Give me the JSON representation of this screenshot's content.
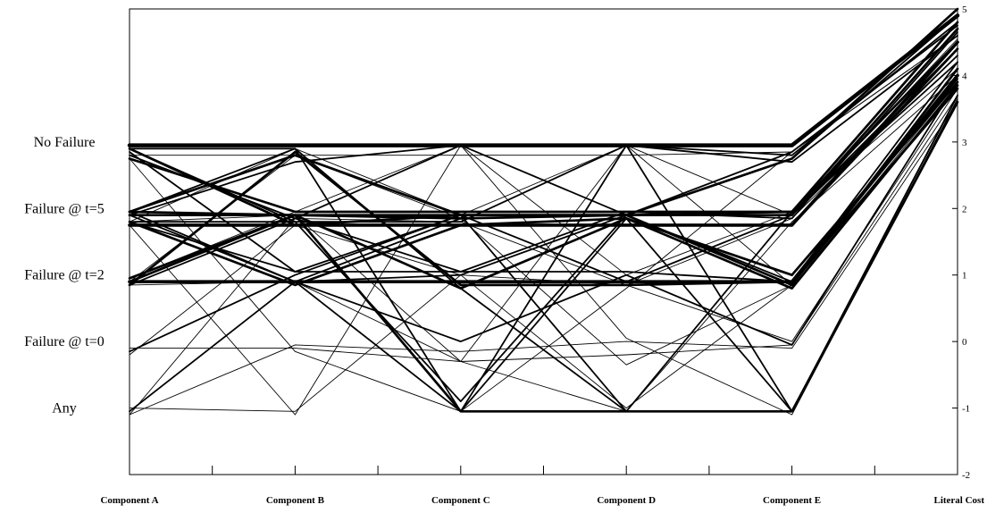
{
  "chart_data": {
    "type": "parallel-coordinates",
    "axes": [
      "Component A",
      "Component B",
      "Component C",
      "Component D",
      "Component E",
      "Literal Cost"
    ],
    "category_levels": [
      {
        "label": "No Failure",
        "value": 3
      },
      {
        "label": "Failure @ t=5",
        "value": 2
      },
      {
        "label": "Failure @ t=2",
        "value": 1
      },
      {
        "label": "Failure @ t=0",
        "value": 0
      },
      {
        "label": "Any",
        "value": -1
      }
    ],
    "right_axis_ticks": [
      "5",
      "4",
      "3",
      "2",
      "1",
      "0",
      "-1",
      "-2"
    ],
    "ylim": [
      -2,
      5
    ],
    "line_color": "#000000",
    "grid": false,
    "lines": [
      {
        "values": [
          2.95,
          2.95,
          2.95,
          2.95,
          2.95,
          4.9
        ],
        "weight": 5
      },
      {
        "values": [
          2.8,
          2.8,
          2.8,
          2.8,
          2.85,
          4.6
        ],
        "weight": 1
      },
      {
        "values": [
          2.75,
          1.95,
          1.95,
          1.95,
          1.95,
          4.5
        ],
        "weight": 3
      },
      {
        "values": [
          2.9,
          1.75,
          1.75,
          1.75,
          1.75,
          4.4
        ],
        "weight": 3
      },
      {
        "values": [
          1.75,
          1.75,
          1.75,
          1.75,
          1.75,
          4.5
        ],
        "weight": 4
      },
      {
        "values": [
          1.75,
          1.75,
          1.9,
          1.9,
          1.9,
          4.7
        ],
        "weight": 3
      },
      {
        "values": [
          1.95,
          2.8,
          1.9,
          1.9,
          1.95,
          4.8
        ],
        "weight": 3
      },
      {
        "values": [
          1.95,
          0.9,
          1.0,
          1.9,
          0.9,
          4.2
        ],
        "weight": 2
      },
      {
        "values": [
          0.9,
          0.9,
          0.9,
          0.9,
          0.9,
          4.0
        ],
        "weight": 4
      },
      {
        "values": [
          0.85,
          2.85,
          0.85,
          0.85,
          0.9,
          3.8
        ],
        "weight": 3
      },
      {
        "values": [
          0.95,
          1.9,
          1.85,
          1.9,
          0.85,
          4.1
        ],
        "weight": 3
      },
      {
        "values": [
          2.85,
          1.05,
          1.9,
          0.9,
          1.9,
          4.3
        ],
        "weight": 2
      },
      {
        "values": [
          1.8,
          0.85,
          1.75,
          1.85,
          1.0,
          3.9
        ],
        "weight": 3
      },
      {
        "values": [
          1.9,
          2.7,
          2.95,
          2.95,
          2.8,
          4.8
        ],
        "weight": 2
      },
      {
        "values": [
          0.85,
          1.85,
          2.95,
          1.9,
          2.75,
          4.9
        ],
        "weight": 2
      },
      {
        "values": [
          2.9,
          1.8,
          1.8,
          2.95,
          2.7,
          4.6
        ],
        "weight": 2
      },
      {
        "values": [
          1.9,
          1.9,
          1.9,
          1.9,
          2.75,
          5.0
        ],
        "weight": 3
      },
      {
        "values": [
          0.9,
          0.9,
          1.85,
          1.9,
          2.85,
          4.75
        ],
        "weight": 2
      },
      {
        "values": [
          1.8,
          1.8,
          -0.9,
          1.9,
          1.9,
          4.4
        ],
        "weight": 2
      },
      {
        "values": [
          0.9,
          1.9,
          -1.05,
          -1.05,
          -1.05,
          3.6
        ],
        "weight": 3
      },
      {
        "values": [
          -1.05,
          0.9,
          -1.05,
          1.85,
          -1.05,
          3.7
        ],
        "weight": 2
      },
      {
        "values": [
          -0.15,
          1.0,
          1.9,
          -1.05,
          -1.05,
          3.6
        ],
        "weight": 2
      },
      {
        "values": [
          -1.0,
          -1.05,
          1.0,
          -1.0,
          0.85,
          3.8
        ],
        "weight": 1
      },
      {
        "values": [
          -0.1,
          -0.1,
          -0.3,
          -0.2,
          -0.05,
          3.7
        ],
        "weight": 1
      },
      {
        "values": [
          -1.1,
          -0.05,
          -0.15,
          0.0,
          -0.1,
          3.6
        ],
        "weight": 1
      },
      {
        "values": [
          1.9,
          0.9,
          0.0,
          1.0,
          -0.05,
          3.9
        ],
        "weight": 2
      },
      {
        "values": [
          2.9,
          2.9,
          -1.05,
          2.95,
          -1.05,
          3.7
        ],
        "weight": 2
      },
      {
        "values": [
          1.95,
          2.9,
          0.8,
          -1.05,
          1.95,
          4.2
        ],
        "weight": 2
      },
      {
        "values": [
          0.85,
          0.9,
          -0.3,
          2.95,
          0.85,
          4.0
        ],
        "weight": 1
      },
      {
        "values": [
          2.75,
          -0.15,
          -1.05,
          0.8,
          2.85,
          4.6
        ],
        "weight": 1
      },
      {
        "values": [
          1.75,
          -1.1,
          2.95,
          0.05,
          -1.1,
          3.65
        ],
        "weight": 1
      },
      {
        "values": [
          -1.1,
          1.85,
          1.8,
          0.85,
          1.85,
          4.3
        ],
        "weight": 1
      },
      {
        "values": [
          0.9,
          2.8,
          1.85,
          -0.35,
          0.85,
          3.9
        ],
        "weight": 1
      },
      {
        "values": [
          1.95,
          1.9,
          0.8,
          1.85,
          0.8,
          3.85
        ],
        "weight": 3
      },
      {
        "values": [
          1.8,
          1.05,
          1.05,
          1.95,
          1.85,
          4.65
        ],
        "weight": 2
      },
      {
        "values": [
          2.8,
          1.85,
          1.05,
          1.05,
          0.9,
          3.95
        ],
        "weight": 2
      },
      {
        "values": [
          0.95,
          1.95,
          2.95,
          1.0,
          1.95,
          4.1
        ],
        "weight": 1
      },
      {
        "values": [
          1.8,
          2.9,
          1.9,
          2.95,
          1.9,
          4.55
        ],
        "weight": 1
      },
      {
        "values": [
          -0.2,
          1.75,
          1.0,
          0.85,
          0.0,
          3.8
        ],
        "weight": 1
      },
      {
        "values": [
          1.8,
          1.9,
          -0.3,
          -1.05,
          1.8,
          4.0
        ],
        "weight": 1
      }
    ]
  }
}
